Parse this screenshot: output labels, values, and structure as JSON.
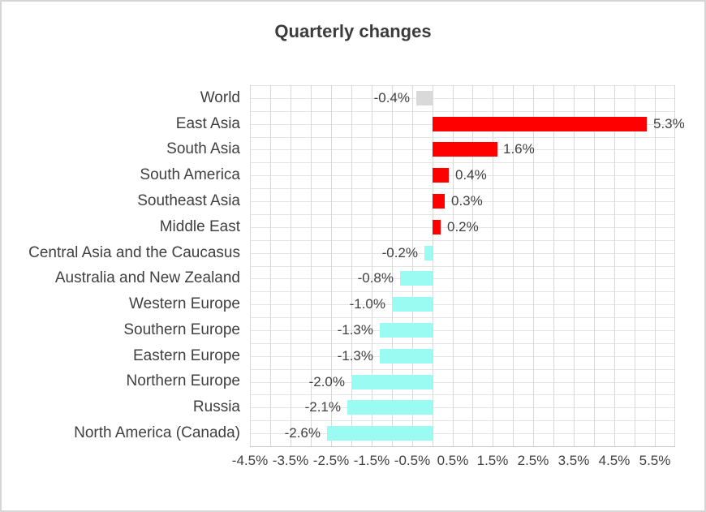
{
  "chart_data": {
    "type": "bar",
    "orientation": "horizontal",
    "title": "Quarterly changes",
    "legend": "none",
    "grid": true,
    "categories": [
      "World",
      "East Asia",
      "South Asia",
      "South America",
      "Southeast Asia",
      "Middle East",
      "Central Asia and the Caucasus",
      "Australia and New Zealand",
      "Western Europe",
      "Southern Europe",
      "Eastern Europe",
      "Northern Europe",
      "Russia",
      "North America (Canada)"
    ],
    "values": [
      -0.4,
      5.3,
      1.6,
      0.4,
      0.3,
      0.2,
      -0.2,
      -0.8,
      -1.0,
      -1.3,
      -1.3,
      -2.0,
      -2.1,
      -2.6
    ],
    "value_labels": [
      "-0.4%",
      "5.3%",
      "1.6%",
      "0.4%",
      "0.3%",
      "0.2%",
      "-0.2%",
      "-0.8%",
      "-1.0%",
      "-1.3%",
      "-1.3%",
      "-2.0%",
      "-2.1%",
      "-2.6%"
    ],
    "bar_colors": [
      "gray",
      "red",
      "red",
      "red",
      "red",
      "red",
      "cyan",
      "cyan",
      "cyan",
      "cyan",
      "cyan",
      "cyan",
      "cyan",
      "cyan"
    ],
    "colors": {
      "red": "#ff0000",
      "cyan": "#9afbf2",
      "gray": "#d9d9d9"
    },
    "x_axis": {
      "min": -4.5,
      "max": 6.0,
      "gridline_step": 0.5,
      "tick_values": [
        -4.5,
        -3.5,
        -2.5,
        -1.5,
        -0.5,
        0.5,
        1.5,
        2.5,
        3.5,
        4.5,
        5.5
      ],
      "tick_labels": [
        "-4.5%",
        "-3.5%",
        "-2.5%",
        "-1.5%",
        "-0.5%",
        "0.5%",
        "1.5%",
        "2.5%",
        "3.5%",
        "4.5%",
        "5.5%"
      ]
    }
  }
}
